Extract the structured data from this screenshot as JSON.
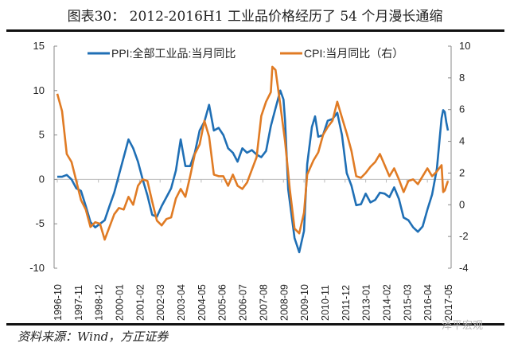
{
  "title": "图表30：  2012-2016H1 工业品价格经历了 54 个月漫长通缩",
  "source": "资料来源：Wind，方正证券",
  "watermark": "泽平宏观",
  "chart_data": {
    "type": "line",
    "title": "图表30：  2012-2016H1 工业品价格经历了 54 个月漫长通缩",
    "x_range": [
      "1996-10",
      "2017-05"
    ],
    "x_tick_labels": [
      "1996-10",
      "1997-11",
      "1998-12",
      "2000-01",
      "2001-02",
      "2002-03",
      "2003-04",
      "2004-05",
      "2005-06",
      "2006-07",
      "2007-08",
      "2008-09",
      "2009-10",
      "2010-11",
      "2011-12",
      "2013-01",
      "2014-02",
      "2015-03",
      "2016-04",
      "2017-05"
    ],
    "y_left": {
      "range": [
        -10,
        15
      ],
      "ticks": [
        -10,
        -5,
        0,
        5,
        10,
        15
      ]
    },
    "y_right": {
      "range": [
        -4,
        10
      ],
      "ticks": [
        -4,
        -2,
        0,
        2,
        4,
        6,
        8,
        10
      ]
    },
    "grid": "zero line only",
    "legend_position": "top",
    "series": [
      {
        "name": "PPI:全部工业品:当月同比",
        "axis": "left",
        "color": "#1f6fb5",
        "points": [
          [
            "1996-10",
            0.3
          ],
          [
            "1997-01",
            0.3
          ],
          [
            "1997-04",
            0.5
          ],
          [
            "1997-07",
            0
          ],
          [
            "1997-10",
            -1
          ],
          [
            "1998-01",
            -1.3
          ],
          [
            "1998-04",
            -3
          ],
          [
            "1998-07",
            -4.8
          ],
          [
            "1998-10",
            -5.4
          ],
          [
            "1999-01",
            -5
          ],
          [
            "1999-04",
            -4.6
          ],
          [
            "1999-07",
            -3
          ],
          [
            "1999-10",
            -1.5
          ],
          [
            "2000-01",
            0.5
          ],
          [
            "2000-04",
            2.5
          ],
          [
            "2000-07",
            4.5
          ],
          [
            "2000-10",
            3.5
          ],
          [
            "2001-01",
            2
          ],
          [
            "2001-04",
            0
          ],
          [
            "2001-07",
            -1.8
          ],
          [
            "2001-10",
            -4
          ],
          [
            "2002-01",
            -4.2
          ],
          [
            "2002-04",
            -3
          ],
          [
            "2002-07",
            -2
          ],
          [
            "2002-10",
            -1
          ],
          [
            "2003-01",
            1
          ],
          [
            "2003-04",
            4.5
          ],
          [
            "2003-07",
            1.5
          ],
          [
            "2003-10",
            1.5
          ],
          [
            "2004-01",
            3
          ],
          [
            "2004-04",
            5.5
          ],
          [
            "2004-07",
            6.5
          ],
          [
            "2004-10",
            8.4
          ],
          [
            "2005-01",
            5.5
          ],
          [
            "2005-04",
            5.8
          ],
          [
            "2005-07",
            5
          ],
          [
            "2005-10",
            3.5
          ],
          [
            "2006-01",
            3
          ],
          [
            "2006-04",
            2
          ],
          [
            "2006-07",
            3.5
          ],
          [
            "2006-10",
            3
          ],
          [
            "2007-01",
            3.3
          ],
          [
            "2007-04",
            2.8
          ],
          [
            "2007-07",
            2.5
          ],
          [
            "2007-10",
            3.2
          ],
          [
            "2008-01",
            6
          ],
          [
            "2008-04",
            8
          ],
          [
            "2008-07",
            10
          ],
          [
            "2008-09",
            9
          ],
          [
            "2008-10",
            6.6
          ],
          [
            "2008-12",
            -1.1
          ],
          [
            "2009-04",
            -6.6
          ],
          [
            "2009-07",
            -8.2
          ],
          [
            "2009-10",
            -5.8
          ],
          [
            "2009-12",
            1.7
          ],
          [
            "2010-03",
            5.9
          ],
          [
            "2010-05",
            7.1
          ],
          [
            "2010-07",
            4.8
          ],
          [
            "2010-10",
            5
          ],
          [
            "2011-01",
            6.6
          ],
          [
            "2011-04",
            6.8
          ],
          [
            "2011-07",
            7.5
          ],
          [
            "2011-10",
            5
          ],
          [
            "2012-01",
            0.7
          ],
          [
            "2012-04",
            -0.7
          ],
          [
            "2012-07",
            -2.9
          ],
          [
            "2012-10",
            -2.8
          ],
          [
            "2013-01",
            -1.6
          ],
          [
            "2013-04",
            -2.6
          ],
          [
            "2013-07",
            -2.3
          ],
          [
            "2013-10",
            -1.5
          ],
          [
            "2014-01",
            -1.6
          ],
          [
            "2014-04",
            -2
          ],
          [
            "2014-07",
            -0.9
          ],
          [
            "2014-10",
            -2.2
          ],
          [
            "2015-01",
            -4.3
          ],
          [
            "2015-04",
            -4.6
          ],
          [
            "2015-07",
            -5.4
          ],
          [
            "2015-10",
            -5.9
          ],
          [
            "2016-01",
            -5.3
          ],
          [
            "2016-04",
            -3.4
          ],
          [
            "2016-07",
            -1.7
          ],
          [
            "2016-10",
            1.2
          ],
          [
            "2017-01",
            6.9
          ],
          [
            "2017-02",
            7.8
          ],
          [
            "2017-03",
            7.6
          ],
          [
            "2017-04",
            6.4
          ],
          [
            "2017-05",
            5.5
          ]
        ]
      },
      {
        "name": "CPI:当月同比（右）",
        "axis": "right",
        "color": "#e07b24",
        "points": [
          [
            "1996-10",
            7.0
          ],
          [
            "1997-01",
            5.9
          ],
          [
            "1997-04",
            3.2
          ],
          [
            "1997-07",
            2.7
          ],
          [
            "1997-10",
            1.5
          ],
          [
            "1998-01",
            0.3
          ],
          [
            "1998-04",
            -0.3
          ],
          [
            "1998-07",
            -1.4
          ],
          [
            "1998-10",
            -1.1
          ],
          [
            "1999-01",
            -1.2
          ],
          [
            "1999-04",
            -2.2
          ],
          [
            "1999-07",
            -1.4
          ],
          [
            "1999-10",
            -0.6
          ],
          [
            "2000-01",
            -0.2
          ],
          [
            "2000-04",
            -0.3
          ],
          [
            "2000-07",
            0.5
          ],
          [
            "2000-10",
            0
          ],
          [
            "2001-01",
            1.2
          ],
          [
            "2001-04",
            1.6
          ],
          [
            "2001-07",
            1.5
          ],
          [
            "2001-10",
            0.2
          ],
          [
            "2002-01",
            -1
          ],
          [
            "2002-04",
            -1.3
          ],
          [
            "2002-07",
            -0.9
          ],
          [
            "2002-10",
            -0.8
          ],
          [
            "2003-01",
            0.4
          ],
          [
            "2003-04",
            1
          ],
          [
            "2003-07",
            0.5
          ],
          [
            "2003-10",
            1.8
          ],
          [
            "2004-01",
            3.2
          ],
          [
            "2004-04",
            3.8
          ],
          [
            "2004-07",
            5.3
          ],
          [
            "2004-10",
            4.3
          ],
          [
            "2005-01",
            1.9
          ],
          [
            "2005-04",
            1.8
          ],
          [
            "2005-07",
            1.8
          ],
          [
            "2005-10",
            1.2
          ],
          [
            "2006-01",
            1.9
          ],
          [
            "2006-04",
            1.2
          ],
          [
            "2006-07",
            1
          ],
          [
            "2006-10",
            1.4
          ],
          [
            "2007-01",
            2.2
          ],
          [
            "2007-04",
            3
          ],
          [
            "2007-07",
            5.6
          ],
          [
            "2007-10",
            6.5
          ],
          [
            "2008-01",
            7.1
          ],
          [
            "2008-02",
            8.7
          ],
          [
            "2008-04",
            8.5
          ],
          [
            "2008-07",
            6.3
          ],
          [
            "2008-10",
            4
          ],
          [
            "2009-01",
            1
          ],
          [
            "2009-04",
            -1.5
          ],
          [
            "2009-07",
            -1.8
          ],
          [
            "2009-10",
            -0.5
          ],
          [
            "2009-12",
            1.9
          ],
          [
            "2010-04",
            2.8
          ],
          [
            "2010-07",
            3.3
          ],
          [
            "2010-10",
            4.4
          ],
          [
            "2011-01",
            4.9
          ],
          [
            "2011-04",
            5.3
          ],
          [
            "2011-07",
            6.5
          ],
          [
            "2011-10",
            5.5
          ],
          [
            "2012-01",
            4.5
          ],
          [
            "2012-04",
            3.4
          ],
          [
            "2012-07",
            1.8
          ],
          [
            "2012-10",
            1.7
          ],
          [
            "2013-01",
            2
          ],
          [
            "2013-04",
            2.4
          ],
          [
            "2013-07",
            2.7
          ],
          [
            "2013-10",
            3.2
          ],
          [
            "2014-01",
            2.5
          ],
          [
            "2014-04",
            1.8
          ],
          [
            "2014-07",
            2.3
          ],
          [
            "2014-10",
            1.6
          ],
          [
            "2015-01",
            0.8
          ],
          [
            "2015-04",
            1.5
          ],
          [
            "2015-07",
            1.6
          ],
          [
            "2015-10",
            1.3
          ],
          [
            "2016-01",
            1.8
          ],
          [
            "2016-04",
            2.3
          ],
          [
            "2016-07",
            1.8
          ],
          [
            "2016-10",
            2.1
          ],
          [
            "2017-01",
            2.5
          ],
          [
            "2017-02",
            0.8
          ],
          [
            "2017-03",
            0.9
          ],
          [
            "2017-05",
            1.5
          ]
        ]
      }
    ]
  }
}
